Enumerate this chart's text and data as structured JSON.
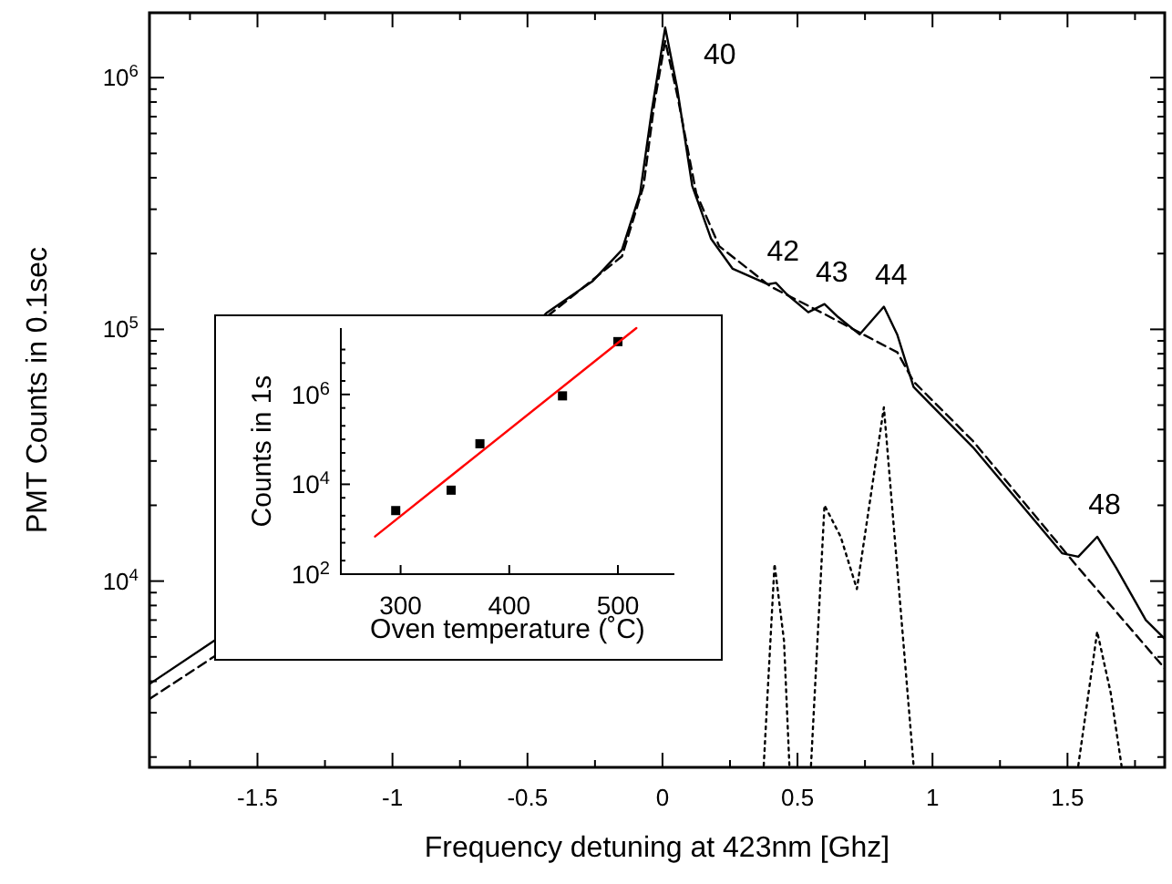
{
  "chart_data": [
    {
      "type": "line",
      "xlabel": "Frequency detuning at 423nm [Ghz]",
      "ylabel": "PMT Counts in 0.1sec",
      "log": "y",
      "xlim": [
        -1.9,
        1.86
      ],
      "ylim": [
        1820,
        1810000
      ],
      "xticks": [
        {
          "value": -1.75,
          "label": null
        },
        -1.5,
        {
          "value": -1.25,
          "label": null
        },
        -1,
        {
          "value": -0.75,
          "label": null
        },
        -0.5,
        {
          "value": -0.25,
          "label": null
        },
        0,
        {
          "value": 0.25,
          "label": null
        },
        0.5,
        {
          "value": 0.75,
          "label": null
        },
        1,
        {
          "value": 1.25,
          "label": null
        },
        1.5,
        {
          "value": 1.75,
          "label": null
        }
      ],
      "yticks": [
        {
          "value": 2000,
          "label": null
        },
        {
          "value": 3000,
          "label": null
        },
        {
          "value": 4000,
          "label": null
        },
        {
          "value": 5000,
          "label": null
        },
        {
          "value": 6000,
          "label": null
        },
        {
          "value": 7000,
          "label": null
        },
        {
          "value": 8000,
          "label": null
        },
        {
          "value": 9000,
          "label": null
        },
        {
          "value": 10000,
          "label": "10$^{4}$"
        },
        {
          "value": 20000,
          "label": null
        },
        {
          "value": 30000,
          "label": null
        },
        {
          "value": 40000,
          "label": null
        },
        {
          "value": 50000,
          "label": null
        },
        {
          "value": 60000,
          "label": null
        },
        {
          "value": 70000,
          "label": null
        },
        {
          "value": 80000,
          "label": null
        },
        {
          "value": 90000,
          "label": null
        },
        {
          "value": 100000,
          "label": "10$^{5}$"
        },
        {
          "value": 200000,
          "label": null
        },
        {
          "value": 300000,
          "label": null
        },
        {
          "value": 400000,
          "label": null
        },
        {
          "value": 500000,
          "label": null
        },
        {
          "value": 600000,
          "label": null
        },
        {
          "value": 700000,
          "label": null
        },
        {
          "value": 800000,
          "label": null
        },
        {
          "value": 900000,
          "label": null
        },
        {
          "value": 1000000,
          "label": "10$^{6}$"
        }
      ],
      "series": [
        {
          "color": "#000000",
          "line_style": "solid",
          "x": [
            -1.9,
            -1.65,
            -0.43,
            -0.26,
            -0.15,
            -0.083,
            -0.04,
            0.01,
            0.055,
            0.11,
            0.18,
            0.26,
            0.39,
            0.42,
            0.46,
            0.54,
            0.6,
            0.65,
            0.73,
            0.82,
            0.87,
            0.93,
            1.15,
            1.48,
            1.54,
            1.61,
            1.68,
            1.79,
            1.86
          ],
          "values": [
            3900,
            5900,
            116000,
            155000,
            207000,
            347000,
            735000,
            1580000,
            900000,
            372000,
            229000,
            174000,
            151000,
            153000,
            138000,
            117000,
            126000,
            112000,
            95500,
            123000,
            95000,
            59000,
            34000,
            12900,
            12500,
            15000,
            11300,
            7000,
            5900
          ]
        },
        {
          "color": "#000000",
          "line_style": "dashed",
          "x": [
            -1.9,
            -1.65,
            -0.43,
            -0.15,
            -0.07,
            -0.03,
            0.01,
            0.055,
            0.125,
            0.21,
            0.4,
            0.6,
            0.87,
            0.93,
            1.15,
            1.54,
            1.86
          ],
          "values": [
            3400,
            5100,
            112000,
            195000,
            372000,
            790000,
            1400000,
            850000,
            347000,
            214000,
            148000,
            115000,
            81000,
            62000,
            36000,
            11300,
            4500
          ]
        },
        {
          "color": "#000000",
          "line_style": "dotted",
          "x": [
            0.375,
            0.415,
            0.45,
            0.47,
            0.5,
            0.55,
            0.6,
            0.66,
            0.72,
            0.82,
            0.93,
            1.2,
            1.54,
            1.61,
            1.66,
            1.7
          ],
          "values": [
            1850,
            11700,
            5800,
            1850,
            null,
            1850,
            20000,
            15000,
            9300,
            49000,
            1850,
            null,
            1850,
            6300,
            3600,
            1850
          ]
        }
      ],
      "annotations": [
        {
          "text": "40",
          "x": 0.01,
          "y": 1580000
        },
        {
          "text": "42",
          "x": 0.42,
          "y": 153000
        },
        {
          "text": "43",
          "x": 0.6,
          "y": 126000
        },
        {
          "text": "44",
          "x": 0.82,
          "y": 123000
        },
        {
          "text": "48",
          "x": 1.61,
          "y": 15000
        }
      ]
    },
    {
      "type": "scatter",
      "xlabel": "Oven temperature (˚C)",
      "ylabel": "Counts in 1s",
      "log": "y",
      "xlim": [
        245,
        552
      ],
      "ylim": [
        100,
        30000000
      ],
      "xticks": [
        300,
        400,
        500
      ],
      "yticks": [
        {
          "value": 100,
          "label": "10$^{2}$"
        },
        {
          "value": 200,
          "label": null
        },
        {
          "value": 500,
          "label": null
        },
        {
          "value": 1000,
          "label": null
        },
        {
          "value": 2000,
          "label": null
        },
        {
          "value": 5000,
          "label": null
        },
        {
          "value": 10000,
          "label": "10$^{4}$"
        },
        {
          "value": 20000,
          "label": null
        },
        {
          "value": 50000,
          "label": null
        },
        {
          "value": 100000,
          "label": null
        },
        {
          "value": 200000,
          "label": null
        },
        {
          "value": 500000,
          "label": null
        },
        {
          "value": 1000000,
          "label": "10$^{6}$"
        },
        {
          "value": 2000000,
          "label": null
        },
        {
          "value": 5000000,
          "label": null
        },
        {
          "value": 10000000,
          "label": null
        }
      ],
      "series": [
        {
          "color": "#000000",
          "marker": "square",
          "x": [
            295.5,
            346.5,
            373,
            449,
            500
          ],
          "values": [
            2600,
            7400,
            80000,
            930000,
            15000000
          ]
        },
        {
          "type": "line",
          "color": "#ff0000",
          "line_style": "solid",
          "x": [
            276.5,
            517
          ],
          "values": [
            690,
            30000000
          ]
        }
      ]
    }
  ]
}
